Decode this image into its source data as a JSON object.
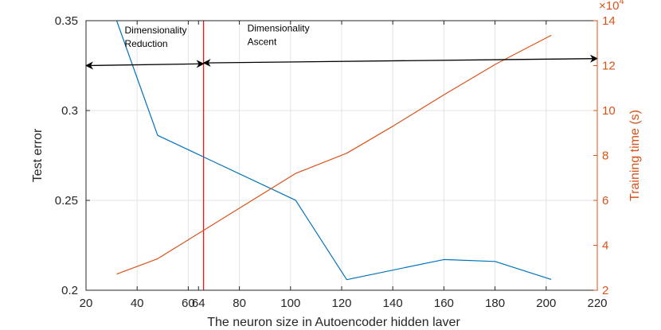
{
  "chart_data": {
    "type": "line",
    "xlabel": "The neuron size in Autoencoder hidden laver",
    "ylabel_left": "Test error",
    "ylabel_right": "Training time (s)",
    "xlim": [
      20,
      220
    ],
    "ylim_left": [
      0.2,
      0.35
    ],
    "ylim_right": [
      2,
      14
    ],
    "right_exponent": "×10",
    "right_exponent_power": "4",
    "grid": true,
    "x_ticks": [
      "20",
      "40",
      "60",
      "64",
      "80",
      "100",
      "120",
      "140",
      "160",
      "180",
      "200",
      "220"
    ],
    "x_tick_values": [
      20,
      40,
      60,
      64,
      80,
      100,
      120,
      140,
      160,
      180,
      200,
      220
    ],
    "y_left_ticks": [
      "0.2",
      "0.25",
      "0.3",
      "0.35"
    ],
    "y_left_tick_values": [
      0.2,
      0.25,
      0.3,
      0.35
    ],
    "y_right_ticks": [
      "2",
      "4",
      "6",
      "8",
      "10",
      "12",
      "14"
    ],
    "y_right_tick_values": [
      2,
      4,
      6,
      8,
      10,
      12,
      14
    ],
    "series": [
      {
        "axis": "left",
        "color": "#0072bd",
        "x": [
          32,
          48,
          102,
          122,
          160,
          180,
          202
        ],
        "y": [
          0.35,
          0.2862,
          0.2501,
          0.2059,
          0.2171,
          0.216,
          0.206
        ]
      },
      {
        "axis": "right",
        "color": "#d95319",
        "x": [
          32,
          48,
          102,
          122,
          140,
          160,
          180,
          202
        ],
        "y": [
          2.72,
          3.4,
          7.2,
          8.1,
          9.3,
          10.7,
          12.05,
          13.35
        ]
      }
    ],
    "vline": {
      "x": 66,
      "color": "#ff0000"
    },
    "annotations": [
      {
        "lines": [
          "Dimensionality",
          "Reduction"
        ],
        "x": 32,
        "y_left": 0.343
      },
      {
        "lines": [
          "Dimensionality",
          "Ascent"
        ],
        "x": 80,
        "y_left": 0.344
      }
    ],
    "arrows": [
      {
        "from": [
          20,
          0.325
        ],
        "to": [
          66,
          0.326
        ],
        "heads": "both"
      },
      {
        "from": [
          66,
          0.3265
        ],
        "to": [
          220,
          0.3289
        ],
        "heads": "both"
      }
    ]
  }
}
